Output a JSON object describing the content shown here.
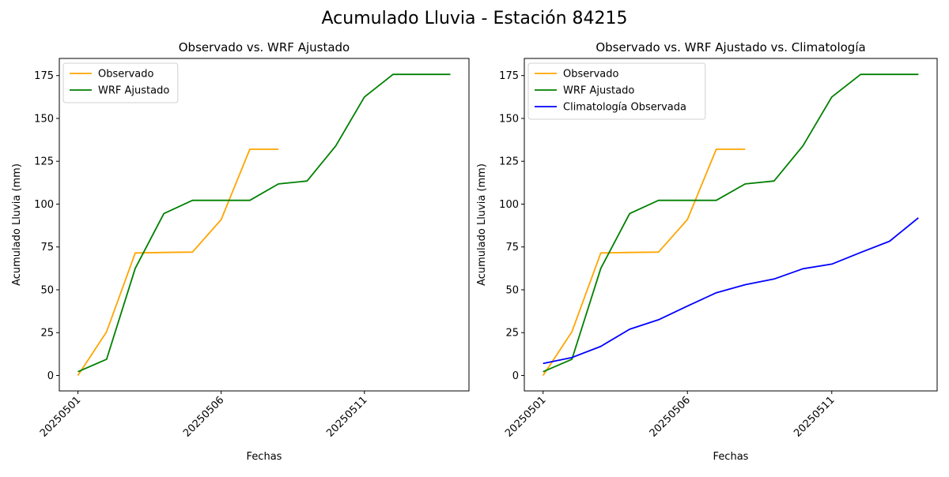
{
  "figure": {
    "title": "Acumulado Lluvia - Estación 84215"
  },
  "chart_data": [
    {
      "type": "line",
      "title": "Observado vs. WRF Ajustado",
      "xlabel": "Fechas",
      "ylabel": "Acumulado Lluvia (mm)",
      "x": [
        "20250501",
        "20250502",
        "20250503",
        "20250504",
        "20250505",
        "20250506",
        "20250507",
        "20250508",
        "20250509",
        "20250510",
        "20250511",
        "20250512",
        "20250513",
        "20250514"
      ],
      "xticks": [
        "20250501",
        "20250506",
        "20250511"
      ],
      "yticks": [
        0,
        25,
        50,
        75,
        100,
        125,
        150,
        175
      ],
      "ylim": [
        -9,
        185
      ],
      "legend": "top-left",
      "grid": false,
      "series": [
        {
          "name": "Observado",
          "color": "#ffa500",
          "values": [
            0,
            25.5,
            71.5,
            71.8,
            72,
            91,
            132,
            132,
            null,
            null,
            null,
            null,
            null,
            null
          ]
        },
        {
          "name": "WRF Ajustado",
          "color": "#008000",
          "values": [
            2.2,
            9.5,
            62.5,
            94.5,
            102.2,
            102.2,
            102.2,
            111.8,
            113.5,
            134,
            162.5,
            175.7,
            175.7,
            175.7
          ]
        }
      ]
    },
    {
      "type": "line",
      "title": "Observado vs. WRF Ajustado vs. Climatología",
      "xlabel": "Fechas",
      "ylabel": "Acumulado Lluvia (mm)",
      "x": [
        "20250501",
        "20250502",
        "20250503",
        "20250504",
        "20250505",
        "20250506",
        "20250507",
        "20250508",
        "20250509",
        "20250510",
        "20250511",
        "20250512",
        "20250513",
        "20250514"
      ],
      "xticks": [
        "20250501",
        "20250506",
        "20250511"
      ],
      "yticks": [
        0,
        25,
        50,
        75,
        100,
        125,
        150,
        175
      ],
      "ylim": [
        -9,
        185
      ],
      "legend": "top-left",
      "grid": false,
      "series": [
        {
          "name": "Observado",
          "color": "#ffa500",
          "values": [
            0,
            25.5,
            71.5,
            71.8,
            72,
            91,
            132,
            132,
            null,
            null,
            null,
            null,
            null,
            null
          ]
        },
        {
          "name": "WRF Ajustado",
          "color": "#008000",
          "values": [
            2.2,
            9.5,
            62.5,
            94.5,
            102.2,
            102.2,
            102.2,
            111.8,
            113.5,
            134,
            162.5,
            175.7,
            175.7,
            175.7
          ]
        },
        {
          "name": "Climatología Observada",
          "color": "#0000ff",
          "values": [
            7,
            10.5,
            17,
            27,
            32.5,
            40.5,
            48.3,
            53,
            56.3,
            62.3,
            65,
            71.8,
            78.3,
            92
          ]
        }
      ]
    }
  ]
}
